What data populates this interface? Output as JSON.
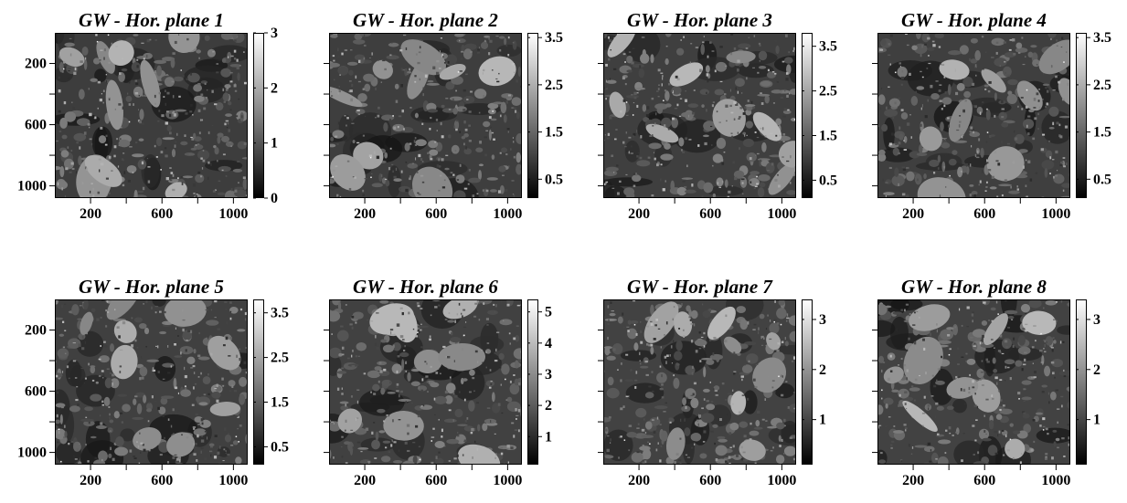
{
  "chart_data": [
    {
      "type": "heatmap",
      "title": "GW - Hor. plane 1",
      "xticks": [
        "200",
        "600",
        "1000"
      ],
      "yticks": [
        "200",
        "600",
        "1000"
      ],
      "colorbar": {
        "ticks": [
          "0",
          "1",
          "2",
          "3"
        ],
        "tick_values": [
          0,
          1,
          2,
          3
        ],
        "range": [
          0,
          3
        ]
      },
      "palette": "grayscale"
    },
    {
      "type": "heatmap",
      "title": "GW - Hor. plane 2",
      "xticks": [
        "200",
        "600",
        "1000"
      ],
      "yticks": [],
      "colorbar": {
        "ticks": [
          "0.5",
          "1.5",
          "2.5",
          "3.5"
        ],
        "tick_values": [
          0.5,
          1.5,
          2.5,
          3.5
        ],
        "range": [
          0.1,
          3.6
        ]
      },
      "palette": "grayscale"
    },
    {
      "type": "heatmap",
      "title": "GW - Hor. plane 3",
      "xticks": [
        "200",
        "600",
        "1000"
      ],
      "yticks": [],
      "colorbar": {
        "ticks": [
          "0.5",
          "1.5",
          "2.5",
          "3.5"
        ],
        "tick_values": [
          0.5,
          1.5,
          2.5,
          3.5
        ],
        "range": [
          0.1,
          3.8
        ]
      },
      "palette": "grayscale"
    },
    {
      "type": "heatmap",
      "title": "GW - Hor. plane 4",
      "xticks": [
        "200",
        "600",
        "1000"
      ],
      "yticks": [],
      "colorbar": {
        "ticks": [
          "0.5",
          "1.5",
          "2.5",
          "3.5"
        ],
        "tick_values": [
          0.5,
          1.5,
          2.5,
          3.5
        ],
        "range": [
          0.1,
          3.6
        ]
      },
      "palette": "grayscale"
    },
    {
      "type": "heatmap",
      "title": "GW - Hor. plane 5",
      "xticks": [
        "200",
        "600",
        "1000"
      ],
      "yticks": [
        "200",
        "600",
        "1000"
      ],
      "colorbar": {
        "ticks": [
          "0.5",
          "1.5",
          "2.5",
          "3.5"
        ],
        "tick_values": [
          0.5,
          1.5,
          2.5,
          3.5
        ],
        "range": [
          0.1,
          3.8
        ]
      },
      "palette": "grayscale"
    },
    {
      "type": "heatmap",
      "title": "GW - Hor. plane 6",
      "xticks": [
        "200",
        "600",
        "1000"
      ],
      "yticks": [],
      "colorbar": {
        "ticks": [
          "1",
          "2",
          "3",
          "4",
          "5"
        ],
        "tick_values": [
          1,
          2,
          3,
          4,
          5
        ],
        "range": [
          0.1,
          5.4
        ]
      },
      "palette": "grayscale"
    },
    {
      "type": "heatmap",
      "title": "GW - Hor. plane 7",
      "xticks": [
        "200",
        "600",
        "1000"
      ],
      "yticks": [],
      "colorbar": {
        "ticks": [
          "1",
          "2",
          "3"
        ],
        "tick_values": [
          1,
          2,
          3
        ],
        "range": [
          0.1,
          3.4
        ]
      },
      "palette": "grayscale"
    },
    {
      "type": "heatmap",
      "title": "GW - Hor. plane 8",
      "xticks": [
        "200",
        "600",
        "1000"
      ],
      "yticks": [],
      "colorbar": {
        "ticks": [
          "1",
          "2",
          "3"
        ],
        "tick_values": [
          1,
          2,
          3
        ],
        "range": [
          0.1,
          3.4
        ]
      },
      "palette": "grayscale"
    }
  ]
}
